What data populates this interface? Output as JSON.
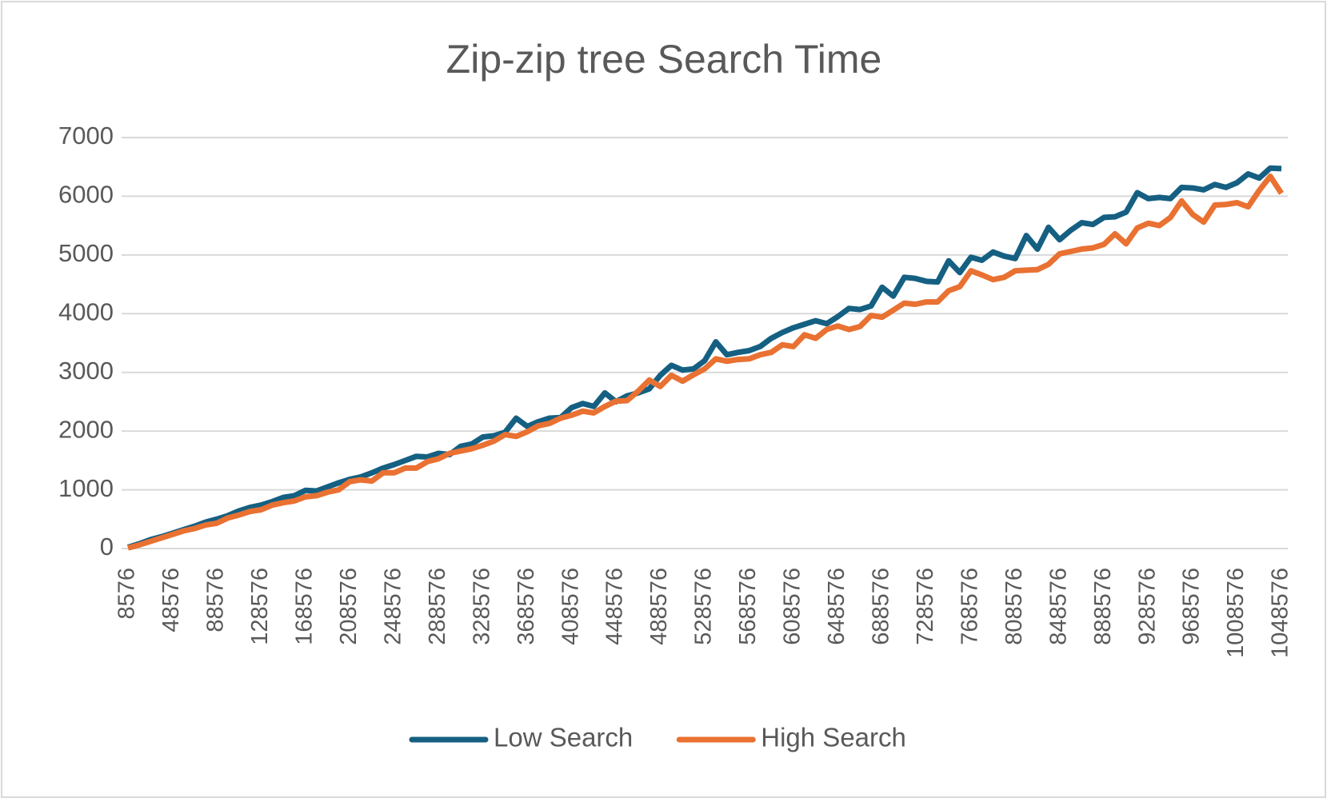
{
  "chart_data": {
    "type": "line",
    "title": "Zip-zip tree Search Time",
    "categories": [
      8576,
      null,
      null,
      null,
      48576,
      null,
      null,
      null,
      88576,
      null,
      null,
      null,
      128576,
      null,
      null,
      null,
      168576,
      null,
      null,
      null,
      208576,
      null,
      null,
      null,
      248576,
      null,
      null,
      null,
      288576,
      null,
      null,
      null,
      328576,
      null,
      null,
      null,
      368576,
      null,
      null,
      null,
      408576,
      null,
      null,
      null,
      448576,
      null,
      null,
      null,
      488576,
      null,
      null,
      null,
      528576,
      null,
      null,
      null,
      568576,
      null,
      null,
      null,
      608576,
      null,
      null,
      null,
      648576,
      null,
      null,
      null,
      688576,
      null,
      null,
      null,
      728576,
      null,
      null,
      null,
      768576,
      null,
      null,
      null,
      808576,
      null,
      null,
      null,
      848576,
      null,
      null,
      null,
      888576,
      null,
      null,
      null,
      928576,
      null,
      null,
      null,
      968576,
      null,
      null,
      null,
      1008576,
      null,
      null,
      null,
      1048576
    ],
    "series": [
      {
        "name": "Low Search",
        "color": "#156082",
        "values": [
          20,
          80,
          150,
          200,
          260,
          320,
          380,
          450,
          500,
          560,
          640,
          700,
          740,
          800,
          870,
          900,
          990,
          980,
          1050,
          1120,
          1180,
          1220,
          1290,
          1370,
          1430,
          1500,
          1570,
          1560,
          1620,
          1600,
          1740,
          1780,
          1900,
          1920,
          1980,
          2220,
          2080,
          2160,
          2220,
          2230,
          2400,
          2470,
          2420,
          2650,
          2500,
          2600,
          2650,
          2720,
          2950,
          3120,
          3040,
          3060,
          3200,
          3520,
          3300,
          3340,
          3370,
          3440,
          3580,
          3680,
          3760,
          3820,
          3880,
          3830,
          3950,
          4090,
          4070,
          4130,
          4450,
          4300,
          4620,
          4600,
          4550,
          4540,
          4900,
          4700,
          4960,
          4910,
          5050,
          4980,
          4940,
          5330,
          5100,
          5470,
          5260,
          5420,
          5550,
          5520,
          5640,
          5650,
          5730,
          6060,
          5960,
          5980,
          5960,
          6150,
          6140,
          6110,
          6200,
          6150,
          6230,
          6380,
          6310,
          6480,
          6470
        ]
      },
      {
        "name": "High Search",
        "color": "#e97132",
        "values": [
          10,
          60,
          120,
          180,
          240,
          300,
          340,
          400,
          430,
          520,
          570,
          630,
          660,
          740,
          780,
          810,
          880,
          900,
          960,
          1000,
          1140,
          1170,
          1150,
          1290,
          1290,
          1370,
          1370,
          1480,
          1530,
          1620,
          1660,
          1700,
          1760,
          1830,
          1940,
          1910,
          1990,
          2090,
          2130,
          2220,
          2270,
          2340,
          2310,
          2420,
          2510,
          2520,
          2680,
          2870,
          2760,
          2950,
          2850,
          2960,
          3060,
          3230,
          3190,
          3220,
          3230,
          3300,
          3340,
          3470,
          3440,
          3640,
          3580,
          3730,
          3790,
          3730,
          3780,
          3970,
          3940,
          4060,
          4180,
          4160,
          4200,
          4200,
          4390,
          4460,
          4730,
          4660,
          4580,
          4620,
          4730,
          4740,
          4750,
          4840,
          5020,
          5060,
          5100,
          5120,
          5180,
          5360,
          5190,
          5460,
          5540,
          5500,
          5640,
          5920,
          5690,
          5560,
          5850,
          5860,
          5890,
          5820,
          6100,
          6340,
          6050
        ]
      }
    ],
    "ylim": [
      0,
      7000
    ],
    "yticks": [
      0,
      1000,
      2000,
      3000,
      4000,
      5000,
      6000,
      7000
    ],
    "grid": true,
    "legend": "bottom"
  }
}
